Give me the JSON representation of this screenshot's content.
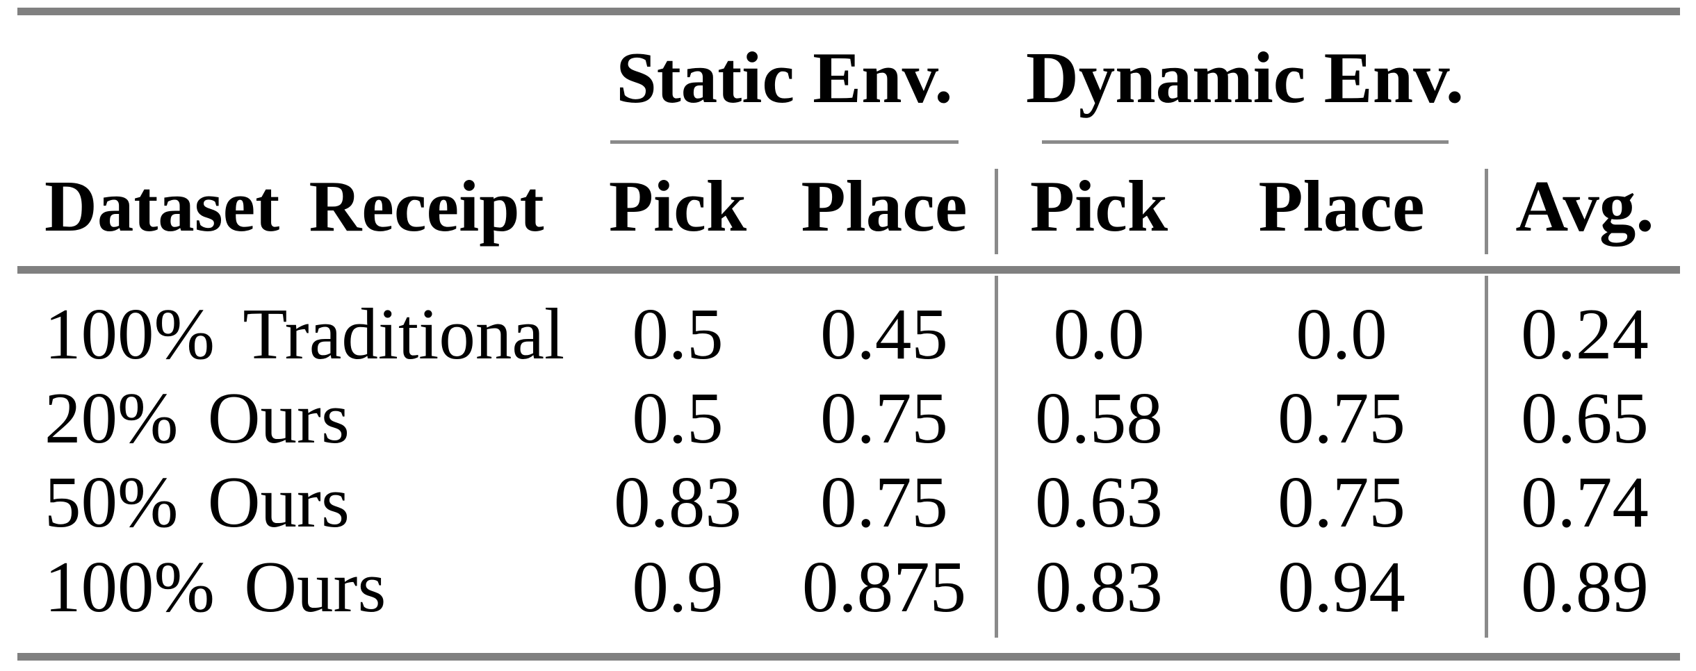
{
  "table": {
    "group_headers": [
      {
        "label": "Static Env."
      },
      {
        "label": "Dynamic Env."
      }
    ],
    "headers": [
      "Dataset Receipt",
      "Pick",
      "Place",
      "Pick",
      "Place",
      "Avg."
    ],
    "rows": [
      {
        "cells": [
          "100% Traditional",
          "0.5",
          "0.45",
          "0.0",
          "0.0",
          "0.24"
        ]
      },
      {
        "cells": [
          "20% Ours",
          "0.5",
          "0.75",
          "0.58",
          "0.75",
          "0.65"
        ]
      },
      {
        "cells": [
          "50% Ours",
          "0.83",
          "0.75",
          "0.63",
          "0.75",
          "0.74"
        ]
      },
      {
        "cells": [
          "100% Ours",
          "0.9",
          "0.875",
          "0.83",
          "0.94",
          "0.89"
        ]
      }
    ],
    "colors": {
      "thick_rule": "#808080",
      "thin_rule": "#8a8a8a",
      "text": "#000000",
      "background": "#ffffff"
    }
  },
  "chart_data": {
    "type": "table",
    "title": "",
    "column_groups": [
      "Static Env.",
      "Dynamic Env."
    ],
    "columns": [
      "Dataset Receipt",
      "Static Pick",
      "Static Place",
      "Dynamic Pick",
      "Dynamic Place",
      "Avg."
    ],
    "series": [
      {
        "name": "100% Traditional",
        "values": [
          0.5,
          0.45,
          0.0,
          0.0,
          0.24
        ]
      },
      {
        "name": "20% Ours",
        "values": [
          0.5,
          0.75,
          0.58,
          0.75,
          0.65
        ]
      },
      {
        "name": "50% Ours",
        "values": [
          0.83,
          0.75,
          0.63,
          0.75,
          0.74
        ]
      },
      {
        "name": "100% Ours",
        "values": [
          0.9,
          0.875,
          0.83,
          0.94,
          0.89
        ]
      }
    ]
  }
}
